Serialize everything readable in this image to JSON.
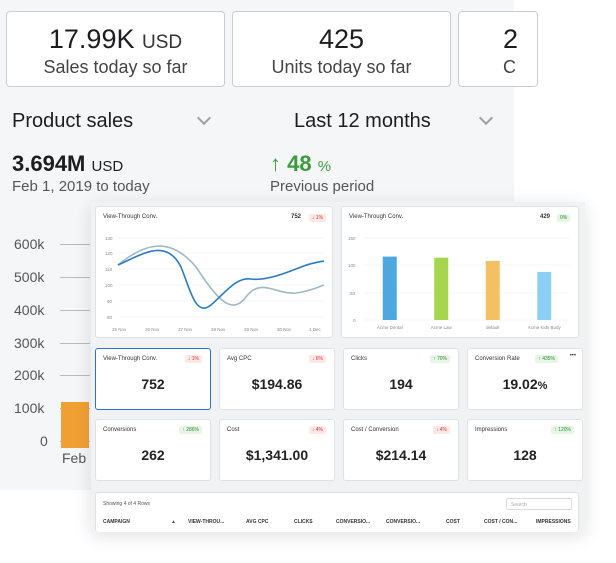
{
  "kpis": [
    {
      "value": "17.99K",
      "unit": "USD",
      "label": "Sales today so far"
    },
    {
      "value": "425",
      "unit": "",
      "label": "Units today so far"
    },
    {
      "value": "2",
      "unit": "",
      "label": "C"
    }
  ],
  "product_dropdown": "Product sales",
  "period_dropdown": "Last 12 months",
  "sales_total": {
    "value": "3.694M",
    "unit": "USD",
    "range": "Feb 1, 2019 to today"
  },
  "growth": {
    "arrow": "↑",
    "value": "48",
    "unit": "%",
    "label": "Previous period"
  },
  "bg_chart": {
    "y_ticks": [
      "600k",
      "500k",
      "400k",
      "300k",
      "200k",
      "100k",
      "0"
    ],
    "x_label": "Feb",
    "bar_value": 120000
  },
  "line_card": {
    "title": "View-Through Conv.",
    "value": "752",
    "badge": "↓ 1%",
    "y_ticks": [
      "130",
      "120",
      "110",
      "100",
      "90",
      "80"
    ],
    "x_ticks": [
      "25 Nov",
      "26 Nov",
      "27 Nov",
      "28 Nov",
      "29 Nov",
      "30 Nov",
      "1 Dec"
    ]
  },
  "bar_card": {
    "title": "View-Through Conv.",
    "value": "429",
    "badge": "0%",
    "y_ticks": [
      "150",
      "100",
      "50",
      "0"
    ],
    "categories": [
      "Acme Dental",
      "Acme Law",
      "default",
      "Acme Kids Body"
    ],
    "values": [
      116,
      114,
      108,
      88
    ],
    "colors": [
      "#4da8e0",
      "#a6d64e",
      "#f4c063",
      "#8ccff4"
    ]
  },
  "tiles": [
    {
      "title": "View-Through Conv.",
      "value": "752",
      "suffix": "",
      "badge": "↓ 1%",
      "trend": "down"
    },
    {
      "title": "Avg CPC",
      "value": "$194.86",
      "suffix": "",
      "badge": "↓ 6%",
      "trend": "down"
    },
    {
      "title": "Clicks",
      "value": "194",
      "suffix": "",
      "badge": "↑ 70%",
      "trend": "up"
    },
    {
      "title": "Conversion Rate",
      "value": "19.02",
      "suffix": "%",
      "badge": "↑ 435%",
      "trend": "up"
    },
    {
      "title": "Conversions",
      "value": "262",
      "suffix": "",
      "badge": "↑ 286%",
      "trend": "up"
    },
    {
      "title": "Cost",
      "value": "$1,341.00",
      "suffix": "",
      "badge": "↓ 4%",
      "trend": "down"
    },
    {
      "title": "Cost / Conversion",
      "value": "$214.14",
      "suffix": "",
      "badge": "↓ 4%",
      "trend": "down"
    },
    {
      "title": "Impressions",
      "value": "128",
      "suffix": "",
      "badge": "↑ 120%",
      "trend": "up"
    }
  ],
  "more_icon": "•••",
  "table": {
    "showing": "Showing 4 of 4 Rows",
    "search_placeholder": "Search",
    "columns": [
      "CAMPAIGN",
      "VIEW-THROU...",
      "AVG CPC",
      "CLICKS",
      "CONVERSIO...",
      "CONVERSIO...",
      "COST",
      "COST / CON...",
      "IMPRESSIONS"
    ],
    "sort_icon": "▲"
  }
}
